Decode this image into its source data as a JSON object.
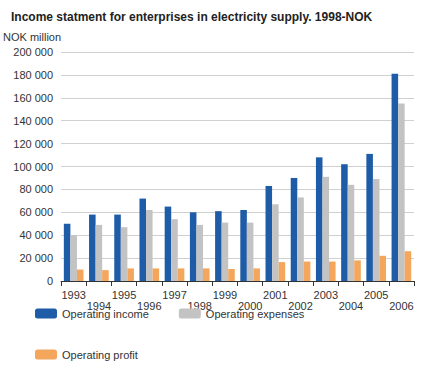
{
  "chart_data": {
    "type": "bar",
    "title": "Income statment for enterprises in electricity supply. 1998-NOK",
    "y_label": "NOK million",
    "categories": [
      "1993",
      "1994",
      "1995",
      "1996",
      "1997",
      "1998",
      "1999",
      "2000",
      "2001",
      "2002",
      "2003",
      "2004",
      "2005",
      "2006"
    ],
    "series": [
      {
        "name": "Operating income",
        "color": "#1f5ca8",
        "values": [
          50000,
          58000,
          58000,
          72000,
          65000,
          60000,
          61000,
          62000,
          83000,
          90000,
          108000,
          102000,
          111000,
          181000
        ]
      },
      {
        "name": "Operating expenses",
        "color": "#c3c3c3",
        "values": [
          40000,
          49000,
          47000,
          62000,
          54000,
          49000,
          51000,
          51000,
          67000,
          73000,
          91000,
          84000,
          89000,
          155000
        ]
      },
      {
        "name": "Operating profit",
        "color": "#f4a65c",
        "values": [
          10000,
          9500,
          11000,
          11000,
          11000,
          11000,
          10500,
          11000,
          16500,
          17000,
          17000,
          18000,
          22000,
          26000
        ]
      }
    ],
    "ylim": [
      0,
      200000
    ],
    "yticks": [
      0,
      {
        "value": 20000,
        "label": "20 000"
      },
      {
        "value": 40000,
        "label": "40 000"
      },
      {
        "value": 60000,
        "label": "60 000"
      },
      {
        "value": 80000,
        "label": "80 000"
      },
      {
        "value": 100000,
        "label": "100 000"
      },
      {
        "value": 120000,
        "label": "120 000"
      },
      {
        "value": 140000,
        "label": "140 000"
      },
      {
        "value": 160000,
        "label": "160 000"
      },
      {
        "value": 180000,
        "label": "180 000"
      },
      {
        "value": 200000,
        "label": "200 000"
      }
    ],
    "grid": true,
    "legend": "bottom"
  }
}
